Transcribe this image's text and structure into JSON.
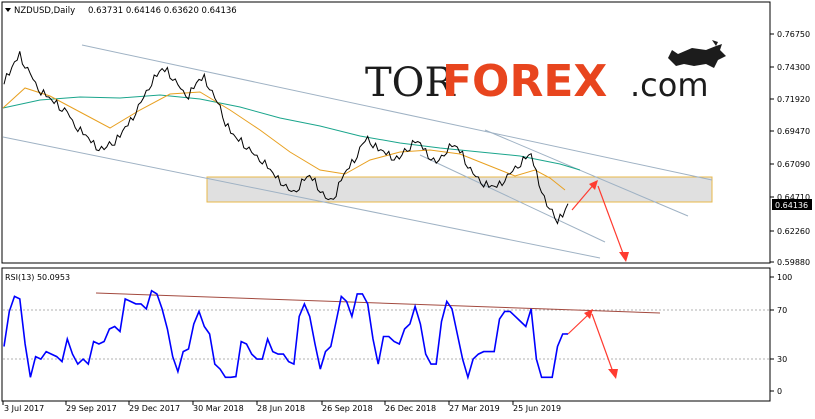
{
  "header": {
    "symbol": "NZDUSD,Daily",
    "ohlc": "0.63731 0.64146 0.63620 0.64136"
  },
  "logo": {
    "part1": "TOR",
    "part2": "FOREX",
    "part3": ".com"
  },
  "price_axis": {
    "ticks": [
      "0.76750",
      "0.74300",
      "0.71920",
      "0.69470",
      "0.67090",
      "0.64710",
      "0.62260",
      "0.59880"
    ],
    "current_price": "0.64136"
  },
  "rsi_panel": {
    "label": "RSI(13) 50.0953",
    "ticks": [
      "100",
      "70",
      "30",
      "0"
    ]
  },
  "time_axis": {
    "ticks": [
      "3 Jul 2017",
      "29 Sep 2017",
      "29 Dec 2017",
      "30 Mar 2018",
      "28 Jun 2018",
      "26 Sep 2018",
      "26 Dec 2018",
      "27 Mar 2019",
      "25 Jun 2019"
    ]
  },
  "colors": {
    "bullish_arrow": "#ff3b30",
    "rsi_line": "#0000ff",
    "ma_fast": "#e8a020",
    "ma_slow": "#1aa58c",
    "channel": "#9fb2c4",
    "zone_border": "#e8b84a",
    "zone_fill": "#d6d6d6"
  },
  "chart_data": {
    "type": "line",
    "series": [
      {
        "values": [
          0.733,
          0.738,
          0.746,
          0.752,
          0.744,
          0.738,
          0.73,
          0.725,
          0.722,
          0.718,
          0.716,
          0.712,
          0.71,
          0.702,
          0.698,
          0.694,
          0.69,
          0.686,
          0.683,
          0.682,
          0.686,
          0.688,
          0.692,
          0.698,
          0.703,
          0.71,
          0.717,
          0.724,
          0.732,
          0.737,
          0.741,
          0.74,
          0.735,
          0.73,
          0.724,
          0.722,
          0.728,
          0.733,
          0.735,
          0.728,
          0.72,
          0.713,
          0.702,
          0.695,
          0.69,
          0.688,
          0.684,
          0.68,
          0.676,
          0.674,
          0.669,
          0.664,
          0.66,
          0.657,
          0.652,
          0.65,
          0.655,
          0.66,
          0.662,
          0.658,
          0.652,
          0.646,
          0.644,
          0.65,
          0.66,
          0.666,
          0.672,
          0.678,
          0.686,
          0.69,
          0.686,
          0.682,
          0.68,
          0.678,
          0.676,
          0.675,
          0.681,
          0.684,
          0.688,
          0.686,
          0.68,
          0.676,
          0.672,
          0.676,
          0.682,
          0.685,
          0.683,
          0.678,
          0.67,
          0.664,
          0.66,
          0.657,
          0.655,
          0.654,
          0.656,
          0.66,
          0.664,
          0.668,
          0.672,
          0.676,
          0.678,
          0.664,
          0.652,
          0.64,
          0.636,
          0.63,
          0.633,
          0.641
        ]
      }
    ]
  }
}
